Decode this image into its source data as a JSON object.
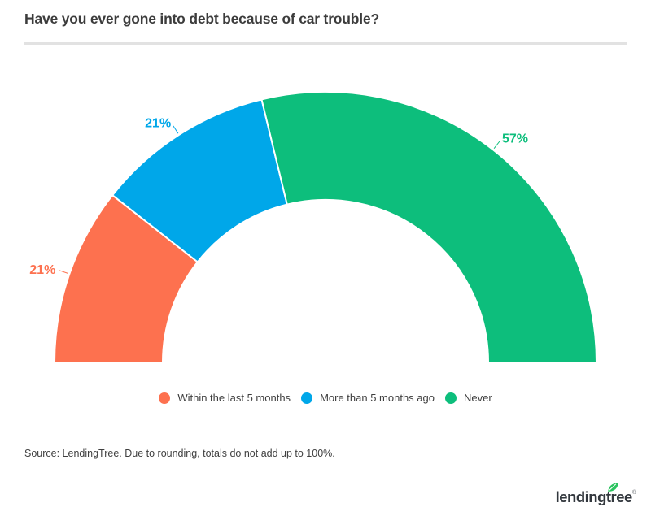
{
  "header": {
    "title": "Have you ever gone into debt because of car trouble?"
  },
  "chart_data": {
    "type": "pie",
    "variant": "semi-donut",
    "title": "Have you ever gone into debt because of car trouble?",
    "categories": [
      "Within the last 5 months",
      "More than 5 months ago",
      "Never"
    ],
    "values": [
      21,
      21,
      57
    ],
    "data_labels": [
      "21%",
      "21%",
      "57%"
    ],
    "colors": [
      "#FD714F",
      "#00A7E9",
      "#0DBE7C"
    ],
    "start_angle_deg": 180,
    "end_angle_deg": 0,
    "inner_radius_ratio": 0.6,
    "legend_position": "bottom"
  },
  "legend": {
    "items": [
      {
        "label": "Within the last 5 months",
        "color": "#FD714F"
      },
      {
        "label": "More than 5 months ago",
        "color": "#00A7E9"
      },
      {
        "label": "Never",
        "color": "#0DBE7C"
      }
    ]
  },
  "footer": {
    "source_note": "Source: LendingTree. Due to rounding, totals do not add up to 100%."
  },
  "logo": {
    "wordmark": "lendingtree",
    "trademark": "®",
    "leaf_color": "#2BC35F",
    "text_color": "#32373d"
  }
}
